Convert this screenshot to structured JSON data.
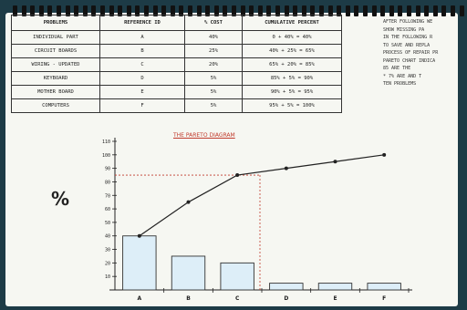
{
  "table": {
    "headers": [
      "PROBLEMS",
      "REFERENCE ID",
      "% COST",
      "CUMULATIVE PERCENT"
    ],
    "rows": [
      [
        "INDIVIDUAL PART",
        "A",
        "40%",
        "0 + 40% = 40%"
      ],
      [
        "CIRCUIT BOARDS",
        "B",
        "25%",
        "40% + 25% = 65%"
      ],
      [
        "WIRING - UPDATED",
        "C",
        "20%",
        "65% + 20% = 85%"
      ],
      [
        "KEYBOARD",
        "D",
        "5%",
        "85% + 5% = 90%"
      ],
      [
        "MOTHER BOARD",
        "E",
        "5%",
        "90% + 5% = 95%"
      ],
      [
        "COMPUTERS",
        "F",
        "5%",
        "95% + 5% = 100%"
      ]
    ]
  },
  "notes": [
    "AFTER FOLLOWING WE",
    "SHOW MISSING PA",
    "IN THE FOLLOWING R",
    "TO SAVE AND REPLA",
    "PROCESS OF REPAIR PR",
    "",
    "PARETO CHART INDICA",
    "   85 ARE THE",
    "   * 7% ARE AND T",
    "   TEN PROBLEMS"
  ],
  "colors": {
    "bar_fill": "#ddeef8",
    "bar_stroke": "#333333",
    "line": "#222222",
    "guide": "#c0392b",
    "page": "#f6f7f2",
    "background": "#1d3b46"
  },
  "chart_data": {
    "type": "bar",
    "title": "THE PARETO DIAGRAM",
    "ylabel": "%",
    "categories": [
      "A",
      "B",
      "C",
      "D",
      "E",
      "F"
    ],
    "values": [
      40,
      25,
      20,
      5,
      5,
      5
    ],
    "cumulative": [
      40,
      65,
      85,
      90,
      95,
      100
    ],
    "ylim": [
      0,
      110
    ],
    "yticks": [
      10,
      20,
      30,
      40,
      50,
      60,
      70,
      80,
      90,
      100,
      110
    ],
    "ytick_labels": [
      "10",
      "20",
      "30",
      "40",
      "50",
      "60",
      "70",
      "80",
      "90",
      "100",
      "110"
    ],
    "guide_line_y": 85
  }
}
